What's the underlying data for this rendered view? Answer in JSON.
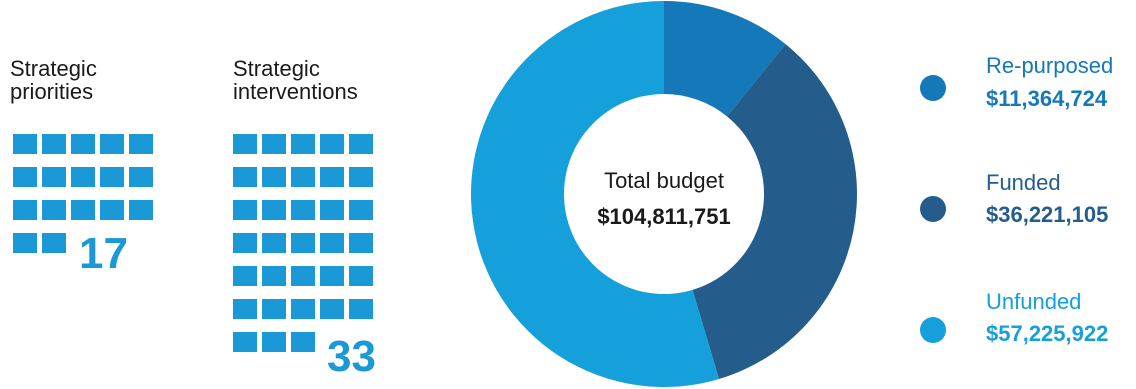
{
  "colors": {
    "accent": "#1a99d6",
    "repurposed": "#1478b9",
    "funded": "#245d8c",
    "unfunded": "#16a0db",
    "text": "#1a1a1a"
  },
  "stats": [
    {
      "label": "Strategic\npriorities",
      "count": "17",
      "value": 17
    },
    {
      "label": "Strategic\ninterventions",
      "count": "33",
      "value": 33
    }
  ],
  "chart_data": {
    "type": "pie",
    "subtype": "donut",
    "center_title": "Total budget",
    "center_value": "$104,811,751",
    "total": 104811751,
    "slices": [
      {
        "name": "Re-purposed",
        "value": 11364724,
        "label": "$11,364,724",
        "color": "#1478b9"
      },
      {
        "name": "Funded",
        "value": 36221105,
        "label": "$36,221,105",
        "color": "#245d8c"
      },
      {
        "name": "Unfunded",
        "value": 57225922,
        "label": "$57,225,922",
        "color": "#16a0db"
      }
    ],
    "legend_position": "right"
  }
}
